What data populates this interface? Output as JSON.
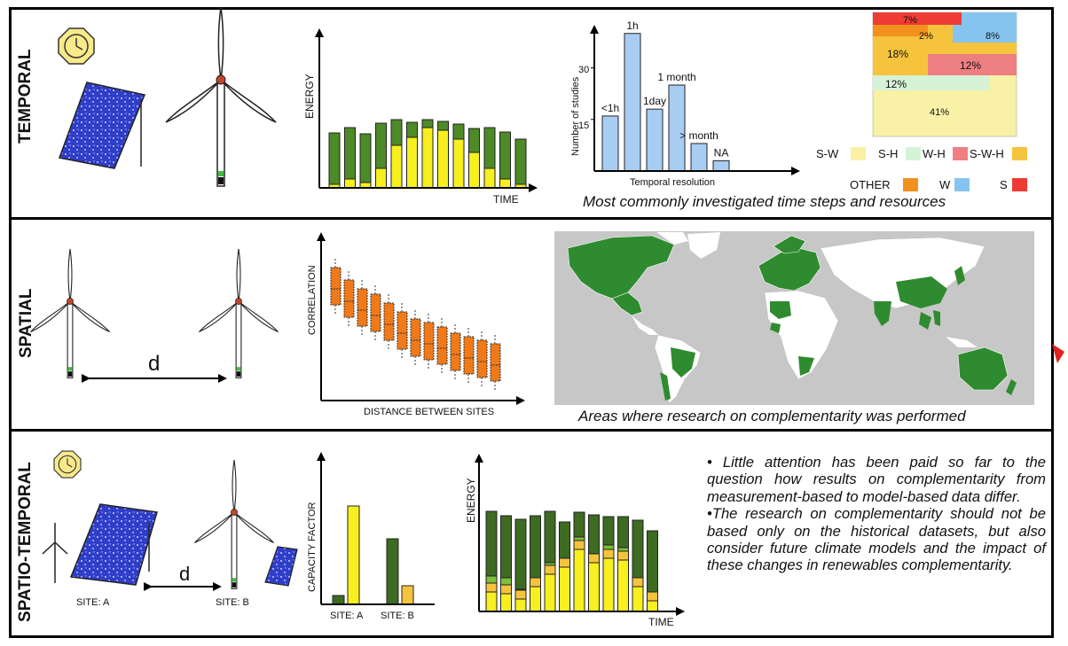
{
  "rows": {
    "temporal": "TEMPORAL",
    "spatial": "SPATIAL",
    "spatio_temporal": "SPATIO-TEMPORAL"
  },
  "temporal": {
    "energy_axis": "ENERGY",
    "time_axis": "TIME",
    "caption": "Most commonly investigated time steps and resources"
  },
  "spatial": {
    "distance_label": "d",
    "correlation_axis": "CORRELATION",
    "distance_axis": "DISTANCE BETWEEN SITES",
    "map_caption": "Areas where research on complementarity was performed"
  },
  "spatio_temporal": {
    "distance_label": "d",
    "site_a": "SITE: A",
    "site_b": "SITE: B",
    "cf_axis": "CAPACITY FACTOR",
    "cf_site_a": "SITE: A",
    "cf_site_b": "SITE: B",
    "energy_axis": "ENERGY",
    "time_axis": "TIME",
    "bullet_1": "• Little attention has been paid so far to the question how results on complementarity from measurement-based to model-based data differ.",
    "bullet_2": "•The research on complementarity should not be based only on the historical datasets, but also consider future climate models and the impact of these changes in renewables complementarity."
  },
  "chart_data": [
    {
      "type": "bar",
      "xlabel": "Temporal resolution",
      "ylabel": "Number of studies",
      "yticks": [
        15,
        30
      ],
      "categories": [
        "<1h",
        "1h",
        "1day",
        "1 month",
        "> month",
        "NA"
      ],
      "values": [
        16,
        40,
        18,
        25,
        8,
        3
      ],
      "ylim": [
        0,
        42
      ],
      "color": "#a9cdf2"
    },
    {
      "type": "treemap",
      "slices": [
        {
          "label": "41%",
          "category": "S-W",
          "value": 41
        },
        {
          "label": "18%",
          "category": "S-W-H",
          "value": 18
        },
        {
          "label": "12%",
          "category": "W-H",
          "value": 12
        },
        {
          "label": "12%",
          "category": "S-H",
          "value": 12
        },
        {
          "label": "8%",
          "category": "W",
          "value": 8
        },
        {
          "label": "7%",
          "category": "S",
          "value": 7
        },
        {
          "label": "2%",
          "category": "OTHER",
          "value": 2
        }
      ],
      "legend": [
        {
          "label": "S-W",
          "color": "#f8f1a6"
        },
        {
          "label": "S-H",
          "color": "#d6f3d6"
        },
        {
          "label": "W-H",
          "color": "#ee7f82"
        },
        {
          "label": "S-W-H",
          "color": "#f5c43c"
        },
        {
          "label": "OTHER",
          "color": "#f3911f"
        },
        {
          "label": "W",
          "color": "#86c4f0"
        },
        {
          "label": "S",
          "color": "#ee3b33"
        }
      ]
    }
  ],
  "colors": {
    "dark_green": "#3d6b22",
    "mid_green": "#6aab2c",
    "yellow": "#f7ef1e",
    "orange": "#f07a1a",
    "map_land": "#ffffff",
    "map_highlight": "#2f8b2f",
    "map_ocean": "#c7c7c7",
    "panel_blue": "#2f3ec9",
    "clock": "#f8e98a"
  }
}
